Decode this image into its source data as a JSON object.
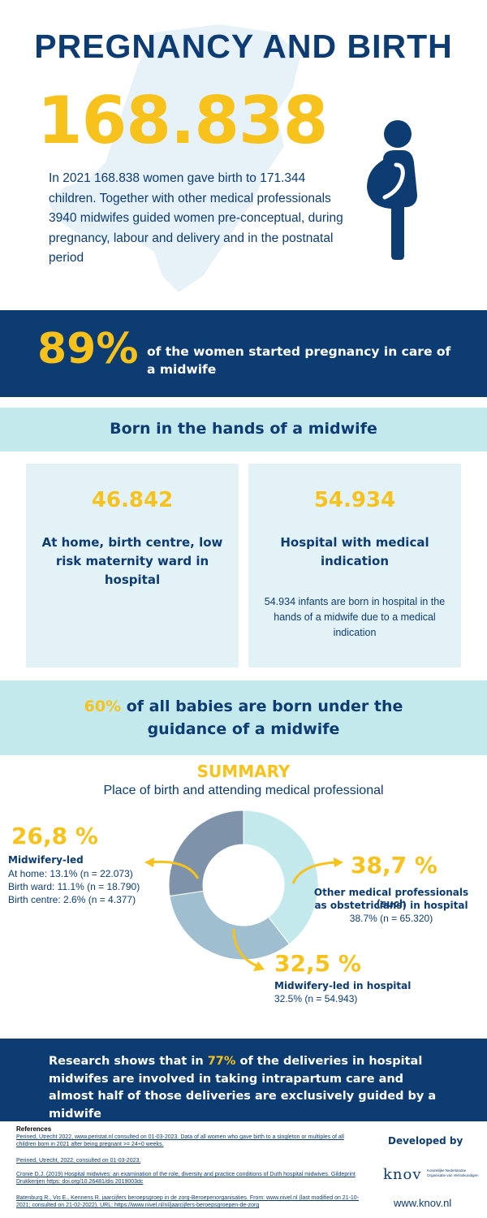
{
  "header": {
    "title": "PREGNANCY AND BIRTH",
    "big_number": "168.838",
    "intro": "In 2021 168.838 women gave birth to 171.344 children. Together with other medical professionals 3940 midwifes guided women pre-conceptual, during pregnancy, labour and delivery and in the postnatal period"
  },
  "band_89": {
    "percent": "89%",
    "text": "of the women started pregnancy in care of a midwife"
  },
  "born": {
    "title": "Born in the hands of a midwife",
    "left": {
      "number": "46.842",
      "label": "At home, birth centre, low risk maternity ward in hospital"
    },
    "right": {
      "number": "54.934",
      "label": "Hospital with medical indication",
      "desc": "54.934 infants are born in hospital in the hands of a midwife due to a medical indication"
    }
  },
  "band_60": {
    "highlight": "60%",
    "text": " of all babies are born under the guidance of a midwife"
  },
  "summary": {
    "title": "SUMMARY",
    "subtitle": "Place of birth and attending medical professional",
    "midwifery_led": {
      "percent": "26,8 %",
      "label": "Midwifery-led",
      "lines": [
        "At home: 13.1% (n = 22.073)",
        "Birth ward: 11.1% (n = 18.790)",
        "Birth centre: 2.6% (n = 4.377)"
      ]
    },
    "other_professionals": {
      "percent": "38,7 %",
      "label_line1": "Other medical professionals (such",
      "label_line2": "as obstetricians) in hospital",
      "detail": "38.7% (n = 65.320)"
    },
    "midwifery_hospital": {
      "percent": "32,5 %",
      "label": "Midwifery-led in hospital",
      "detail": "32.5% (n = 54.943)"
    }
  },
  "chart_data": {
    "type": "pie",
    "title": "",
    "categories": [
      "Other medical professionals (such as obstetricians) in hospital",
      "Midwifery-led in hospital",
      "Midwifery-led"
    ],
    "values": [
      38.7,
      32.5,
      26.8
    ],
    "colors": [
      "#c3e9ec",
      "#9fbfd0",
      "#7e93aa"
    ]
  },
  "research": {
    "before": "Research shows that in ",
    "highlight": "77%",
    "after": " of the deliveries in hospital midwifes are involved in taking intrapartum care and almost half of those deliveries are exclusively guided by a midwife"
  },
  "references": {
    "title": "References",
    "items": [
      "Perined, Utrecht 2022, www.peristat.nl consulted on 01-03-2023. Data of all women who gave birth to a singleton or multiples of all children born in 2021 after being pregnant >= 24+0 weeks.",
      "Perined, Utrecht, 2022, consulted on 01-03-2023.",
      "Cronie D.J. (2019) Hospital midwives: an examination of the role, diversity and practice conditions of Duth hospital midwives. Gildeprint Drukkerijen https: doi.org/10.26481/dis 2019003dc",
      "Batenburg R., Vis E., Kennens R. jaarcijfers beroepsgroep in de zorg-Beroepenorganisaties. From: www.nivel.nl (last modified on 21-10-2021; consulted on 21-02-2022). URL: https://www.nivel.nl/nl/jaarcijfers-beroepsgroepen-de-zorg"
    ]
  },
  "footer": {
    "developed_by": "Developed by",
    "logo_text": "knov",
    "logo_subtext_1": "Koninklijke Nederlandse",
    "logo_subtext_2": "Organisatie van Verloskundigen",
    "url": "www.knov.nl"
  },
  "colors": {
    "navy": "#0d3c73",
    "yellow": "#f6c21b",
    "light_teal": "#c3e9ec",
    "card_bg": "#e3f2f6"
  }
}
